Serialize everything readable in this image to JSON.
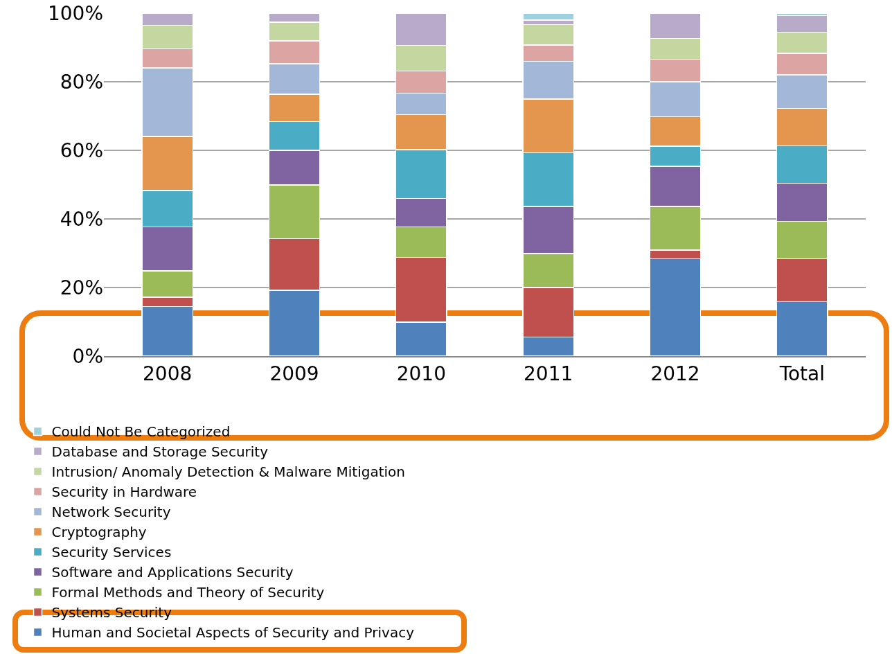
{
  "chart_data": {
    "type": "bar",
    "stacked": true,
    "categories": [
      "2008",
      "2009",
      "2010",
      "2011",
      "2012",
      "Total"
    ],
    "series": [
      {
        "name": "Human and Societal Aspects of Security and Privacy",
        "color": "#4f81bd",
        "values": [
          14.4,
          19.2,
          9.9,
          5.6,
          28.4,
          15.9
        ]
      },
      {
        "name": "Systems Security",
        "color": "#c0504d",
        "values": [
          2.8,
          15.0,
          18.9,
          14.4,
          2.5,
          12.5
        ]
      },
      {
        "name": "Formal Methods and Theory of Security",
        "color": "#9bbb59",
        "values": [
          7.6,
          15.7,
          8.9,
          9.9,
          12.7,
          10.9
        ]
      },
      {
        "name": "Software and Applications Security",
        "color": "#8064a2",
        "values": [
          12.9,
          10.1,
          8.3,
          13.7,
          11.8,
          11.1
        ]
      },
      {
        "name": "Security Services",
        "color": "#4bacc6",
        "values": [
          10.6,
          8.4,
          14.2,
          15.7,
          5.8,
          10.9
        ]
      },
      {
        "name": "Cryptography",
        "color": "#e5964e",
        "values": [
          15.7,
          8.0,
          10.2,
          15.7,
          8.6,
          10.9
        ]
      },
      {
        "name": "Network Security",
        "color": "#a3b8d9",
        "values": [
          20.0,
          8.9,
          6.3,
          11.0,
          10.2,
          9.8
        ]
      },
      {
        "name": "Security in Hardware",
        "color": "#dca4a2",
        "values": [
          5.6,
          6.6,
          6.4,
          4.7,
          6.6,
          6.3
        ]
      },
      {
        "name": "Intrusion/ Anomaly Detection & Malware Mitigation",
        "color": "#c5d7a0",
        "values": [
          6.9,
          5.5,
          7.5,
          6.0,
          6.0,
          6.1
        ]
      },
      {
        "name": "Database and Storage Security",
        "color": "#b8aac9",
        "values": [
          3.5,
          2.6,
          9.4,
          1.3,
          7.4,
          4.9
        ]
      },
      {
        "name": "Could Not Be Categorized",
        "color": "#9ed1df",
        "values": [
          null,
          null,
          null,
          2.0,
          null,
          0.7
        ]
      }
    ],
    "ylim": [
      0,
      100
    ],
    "yticks": [
      {
        "value": 0,
        "label": "0%"
      },
      {
        "value": 20,
        "label": "20%"
      },
      {
        "value": 40,
        "label": "40%"
      },
      {
        "value": 60,
        "label": "60%"
      },
      {
        "value": 80,
        "label": "80%"
      },
      {
        "value": 100,
        "label": "100%"
      }
    ],
    "grid": "y",
    "legend": "bottom"
  }
}
